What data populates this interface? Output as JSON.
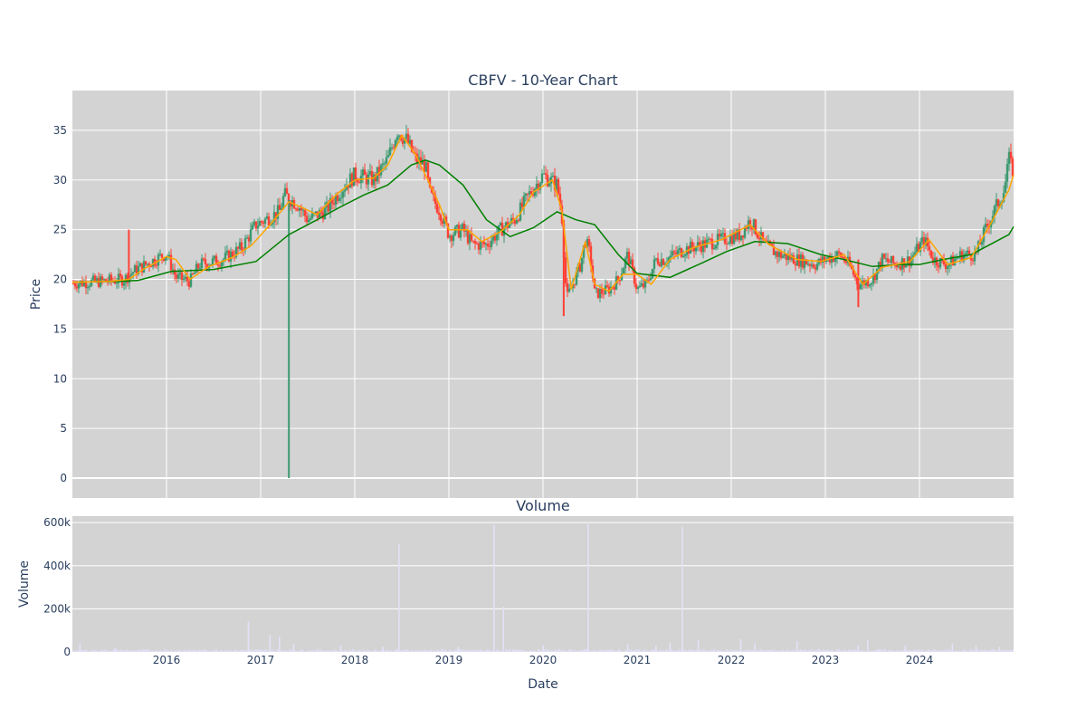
{
  "chart_data": [
    {
      "type": "candlestick",
      "title": "CBFV - 10-Year Chart",
      "ylabel": "Price",
      "xlabel": "",
      "ylim": [
        -2,
        39
      ],
      "yticks": [
        0,
        5,
        10,
        15,
        20,
        25,
        30,
        35
      ],
      "xlim": [
        2015.0,
        2025.0
      ],
      "grid": true,
      "colors": {
        "up": "#3d9970",
        "down": "#ff4136",
        "ma_short": "#ffa500",
        "ma_long": "#008000",
        "plot_bg": "#d3d3d3"
      },
      "price_path": [
        [
          2015.0,
          19.6
        ],
        [
          2015.3,
          19.8
        ],
        [
          2015.55,
          20.0
        ],
        [
          2015.65,
          20.8
        ],
        [
          2015.8,
          21.6
        ],
        [
          2016.0,
          22.6
        ],
        [
          2016.1,
          20.2
        ],
        [
          2016.25,
          19.8
        ],
        [
          2016.35,
          21.5
        ],
        [
          2016.6,
          22.0
        ],
        [
          2016.8,
          23.2
        ],
        [
          2016.95,
          25.5
        ],
        [
          2017.05,
          26.0
        ],
        [
          2017.2,
          26.8
        ],
        [
          2017.25,
          28.5
        ],
        [
          2017.4,
          27.5
        ],
        [
          2017.5,
          26.0
        ],
        [
          2017.7,
          27.0
        ],
        [
          2017.85,
          29.0
        ],
        [
          2018.0,
          30.5
        ],
        [
          2018.2,
          30.0
        ],
        [
          2018.35,
          32.0
        ],
        [
          2018.45,
          35.0
        ],
        [
          2018.55,
          34.0
        ],
        [
          2018.65,
          32.0
        ],
        [
          2018.75,
          31.5
        ],
        [
          2018.8,
          28.5
        ],
        [
          2018.9,
          27.0
        ],
        [
          2019.0,
          24.5
        ],
        [
          2019.15,
          25.0
        ],
        [
          2019.25,
          23.5
        ],
        [
          2019.4,
          23.5
        ],
        [
          2019.55,
          25.0
        ],
        [
          2019.7,
          26.0
        ],
        [
          2019.85,
          28.5
        ],
        [
          2020.0,
          30.5
        ],
        [
          2020.15,
          29.5
        ],
        [
          2020.2,
          26.5
        ],
        [
          2020.25,
          18.0
        ],
        [
          2020.4,
          21.5
        ],
        [
          2020.45,
          24.0
        ],
        [
          2020.5,
          22.5
        ],
        [
          2020.55,
          18.5
        ],
        [
          2020.7,
          19.0
        ],
        [
          2020.8,
          20.0
        ],
        [
          2020.9,
          22.5
        ],
        [
          2021.0,
          19.0
        ],
        [
          2021.1,
          19.5
        ],
        [
          2021.2,
          22.0
        ],
        [
          2021.3,
          22.0
        ],
        [
          2021.5,
          23.0
        ],
        [
          2021.7,
          23.5
        ],
        [
          2021.9,
          24.0
        ],
        [
          2022.1,
          24.5
        ],
        [
          2022.2,
          26.0
        ],
        [
          2022.35,
          23.5
        ],
        [
          2022.5,
          22.5
        ],
        [
          2022.7,
          22.0
        ],
        [
          2022.9,
          21.5
        ],
        [
          2023.0,
          22.0
        ],
        [
          2023.15,
          22.5
        ],
        [
          2023.25,
          21.5
        ],
        [
          2023.35,
          19.5
        ],
        [
          2023.5,
          20.0
        ],
        [
          2023.6,
          22.0
        ],
        [
          2023.75,
          21.5
        ],
        [
          2023.9,
          22.0
        ],
        [
          2024.05,
          24.0
        ],
        [
          2024.15,
          22.0
        ],
        [
          2024.3,
          21.5
        ],
        [
          2024.45,
          22.5
        ],
        [
          2024.6,
          22.5
        ],
        [
          2024.7,
          25.0
        ],
        [
          2024.8,
          27.0
        ],
        [
          2024.9,
          29.0
        ],
        [
          2024.97,
          33.0
        ],
        [
          2025.0,
          28.5
        ]
      ],
      "ma_short": [
        [
          2015.0,
          19.7
        ],
        [
          2015.4,
          19.8
        ],
        [
          2015.6,
          20.0
        ],
        [
          2015.75,
          21.0
        ],
        [
          2016.0,
          22.3
        ],
        [
          2016.1,
          22.0
        ],
        [
          2016.25,
          20.0
        ],
        [
          2016.45,
          21.3
        ],
        [
          2016.7,
          22.2
        ],
        [
          2016.9,
          23.4
        ],
        [
          2017.1,
          25.5
        ],
        [
          2017.3,
          27.8
        ],
        [
          2017.45,
          27.2
        ],
        [
          2017.6,
          26.5
        ],
        [
          2017.8,
          28.5
        ],
        [
          2018.0,
          30.0
        ],
        [
          2018.2,
          30.2
        ],
        [
          2018.35,
          31.5
        ],
        [
          2018.5,
          34.5
        ],
        [
          2018.65,
          32.5
        ],
        [
          2018.75,
          30.5
        ],
        [
          2018.9,
          27.5
        ],
        [
          2019.0,
          25.0
        ],
        [
          2019.2,
          25.0
        ],
        [
          2019.35,
          23.8
        ],
        [
          2019.55,
          24.8
        ],
        [
          2019.75,
          26.5
        ],
        [
          2019.9,
          28.8
        ],
        [
          2020.1,
          30.0
        ],
        [
          2020.2,
          27.0
        ],
        [
          2020.3,
          19.0
        ],
        [
          2020.45,
          23.8
        ],
        [
          2020.55,
          19.5
        ],
        [
          2020.7,
          18.8
        ],
        [
          2020.85,
          20.5
        ],
        [
          2021.0,
          20.5
        ],
        [
          2021.15,
          19.5
        ],
        [
          2021.35,
          22.0
        ],
        [
          2021.6,
          23.2
        ],
        [
          2021.9,
          24.0
        ],
        [
          2022.2,
          25.5
        ],
        [
          2022.4,
          23.5
        ],
        [
          2022.7,
          22.0
        ],
        [
          2022.95,
          21.8
        ],
        [
          2023.2,
          22.5
        ],
        [
          2023.4,
          19.5
        ],
        [
          2023.6,
          21.2
        ],
        [
          2023.9,
          21.8
        ],
        [
          2024.1,
          24.0
        ],
        [
          2024.3,
          21.5
        ],
        [
          2024.55,
          22.2
        ],
        [
          2024.75,
          25.5
        ],
        [
          2024.95,
          29.0
        ],
        [
          2025.0,
          30.5
        ]
      ],
      "ma_long": [
        [
          2015.0,
          19.7
        ],
        [
          2015.5,
          19.8
        ],
        [
          2015.7,
          19.9
        ],
        [
          2016.05,
          20.8
        ],
        [
          2016.5,
          21.0
        ],
        [
          2016.95,
          21.8
        ],
        [
          2017.3,
          24.5
        ],
        [
          2017.6,
          26.0
        ],
        [
          2017.85,
          27.3
        ],
        [
          2018.1,
          28.5
        ],
        [
          2018.35,
          29.5
        ],
        [
          2018.6,
          31.5
        ],
        [
          2018.75,
          32.0
        ],
        [
          2018.9,
          31.5
        ],
        [
          2019.15,
          29.5
        ],
        [
          2019.4,
          26.0
        ],
        [
          2019.65,
          24.3
        ],
        [
          2019.9,
          25.2
        ],
        [
          2020.15,
          26.8
        ],
        [
          2020.35,
          26.0
        ],
        [
          2020.55,
          25.5
        ],
        [
          2020.8,
          22.5
        ],
        [
          2021.0,
          20.6
        ],
        [
          2021.35,
          20.2
        ],
        [
          2021.7,
          21.7
        ],
        [
          2021.95,
          22.8
        ],
        [
          2022.25,
          23.8
        ],
        [
          2022.6,
          23.6
        ],
        [
          2022.95,
          22.5
        ],
        [
          2023.2,
          22.0
        ],
        [
          2023.5,
          21.3
        ],
        [
          2023.8,
          21.5
        ],
        [
          2024.0,
          21.5
        ],
        [
          2024.25,
          22.0
        ],
        [
          2024.55,
          22.5
        ],
        [
          2024.75,
          23.5
        ],
        [
          2024.95,
          24.5
        ],
        [
          2025.0,
          25.3
        ]
      ],
      "spikes": [
        {
          "x": 2015.6,
          "low": 19.8,
          "high": 25.0,
          "dir": "down"
        },
        {
          "x": 2017.3,
          "low": 0.0,
          "high": 28.0,
          "dir": "up"
        },
        {
          "x": 2020.22,
          "low": 16.3,
          "high": 26.0,
          "dir": "down"
        },
        {
          "x": 2023.35,
          "low": 17.2,
          "high": 22.0,
          "dir": "down"
        }
      ]
    },
    {
      "type": "bar",
      "title": "Volume",
      "ylabel": "Volume",
      "xlabel": "Date",
      "ylim": [
        0,
        630000
      ],
      "yticks": [
        0,
        200000,
        400000,
        600000
      ],
      "ytick_labels": [
        "0",
        "200k",
        "400k",
        "600k"
      ],
      "xticks": [
        2016,
        2017,
        2018,
        2019,
        2020,
        2021,
        2022,
        2023,
        2024
      ],
      "xlim": [
        2015.0,
        2025.0
      ],
      "baseline": 8000,
      "spikes": [
        [
          2015.08,
          40000
        ],
        [
          2015.45,
          20000
        ],
        [
          2016.87,
          140000
        ],
        [
          2017.1,
          80000
        ],
        [
          2017.2,
          70000
        ],
        [
          2017.35,
          35000
        ],
        [
          2017.85,
          30000
        ],
        [
          2018.3,
          25000
        ],
        [
          2018.47,
          500000
        ],
        [
          2019.1,
          25000
        ],
        [
          2019.48,
          590000
        ],
        [
          2019.58,
          210000
        ],
        [
          2020.0,
          30000
        ],
        [
          2020.48,
          600000
        ],
        [
          2020.9,
          35000
        ],
        [
          2021.2,
          30000
        ],
        [
          2021.35,
          45000
        ],
        [
          2021.48,
          580000
        ],
        [
          2021.65,
          55000
        ],
        [
          2022.1,
          60000
        ],
        [
          2022.25,
          40000
        ],
        [
          2022.7,
          50000
        ],
        [
          2023.35,
          30000
        ],
        [
          2023.45,
          55000
        ],
        [
          2023.85,
          30000
        ],
        [
          2024.35,
          40000
        ],
        [
          2024.6,
          30000
        ],
        [
          2024.85,
          25000
        ]
      ]
    }
  ]
}
